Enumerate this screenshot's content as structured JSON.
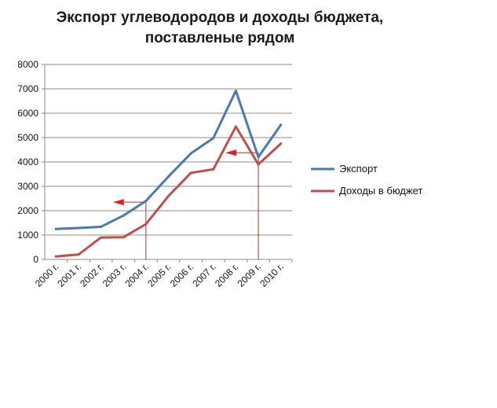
{
  "chart_data": {
    "type": "line",
    "title_line1": "Экспорт углеводородов и доходы бюджета,",
    "title_line2": "поставленые рядом",
    "categories": [
      "2000 г.",
      "2001 г.",
      "2002 г.",
      "2003 г.",
      "2004 г.",
      "2005 г.",
      "2006 г.",
      "2007 г.",
      "2008 г.",
      "2009 г.",
      "2010 г."
    ],
    "series": [
      {
        "name": "Экспорт",
        "color": "#4a7ab5",
        "values": [
          1250,
          1290,
          1340,
          1800,
          2400,
          3400,
          4350,
          4980,
          6920,
          4200,
          5520
        ]
      },
      {
        "name": "Доходы в бюджет",
        "color": "#c0504d",
        "values": [
          120,
          200,
          900,
          910,
          1450,
          2600,
          3550,
          3700,
          5450,
          3900,
          4750
        ]
      }
    ],
    "ylim": [
      0,
      8000
    ],
    "yticks": [
      0,
      1000,
      2000,
      3000,
      4000,
      5000,
      6000,
      7000,
      8000
    ],
    "grid": true,
    "legend_position": "right",
    "annotations": [
      {
        "year": "2004 г.",
        "level": 2350,
        "arrow_color": "#e02020",
        "line_color": "#b03030"
      },
      {
        "year": "2009 г.",
        "level": 4380,
        "arrow_color": "#e02020",
        "line_color": "#b03030"
      }
    ]
  }
}
